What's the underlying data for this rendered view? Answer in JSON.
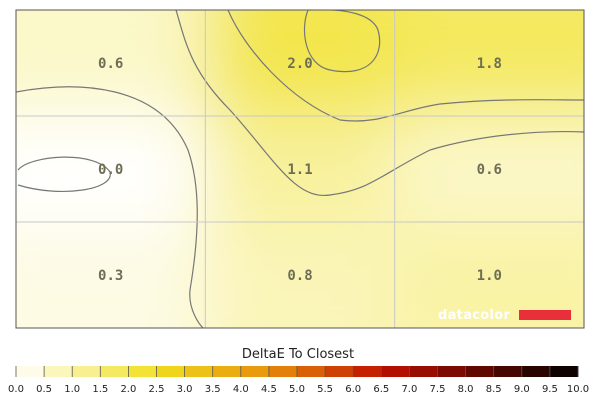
{
  "chart_data": {
    "type": "heatmap",
    "title": "",
    "legend_title": "DeltaE To Closest",
    "rows": 3,
    "cols": 3,
    "values": [
      [
        0.6,
        2.0,
        1.8
      ],
      [
        0.0,
        1.1,
        0.6
      ],
      [
        0.3,
        0.8,
        1.0
      ]
    ],
    "labels": [
      [
        "0.6",
        "2.0",
        "1.8"
      ],
      [
        "0.0",
        "1.1",
        "0.6"
      ],
      [
        "0.3",
        "0.8",
        "1.0"
      ]
    ],
    "scale_min": 0.0,
    "scale_max": 10.0,
    "scale_ticks": [
      "0.0",
      "0.5",
      "1.0",
      "1.5",
      "2.0",
      "2.5",
      "3.0",
      "3.5",
      "4.0",
      "4.5",
      "5.0",
      "5.5",
      "6.0",
      "6.5",
      "7.0",
      "7.5",
      "8.0",
      "8.5",
      "9.0",
      "9.5",
      "10.0"
    ],
    "colors": {
      "low": "#ffffff",
      "mid": "#f0e020",
      "high_orange": "#e8900a",
      "high_red": "#c01000",
      "max": "#000000",
      "grid": "#c8c8c8",
      "contour": "#777777",
      "brand_bar": "#e8303a"
    }
  },
  "brand": {
    "name": "datacolor"
  }
}
